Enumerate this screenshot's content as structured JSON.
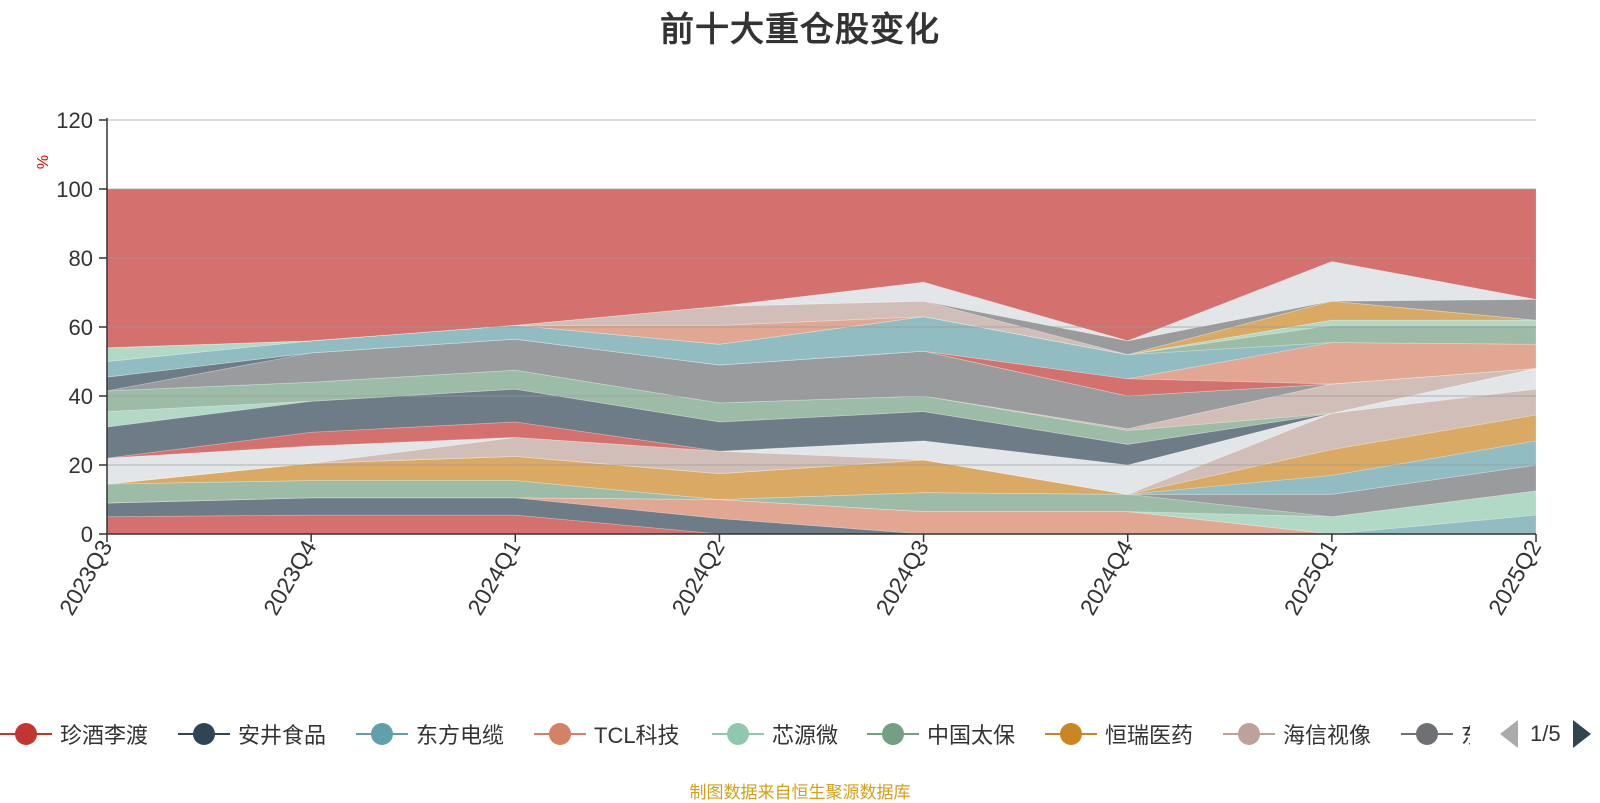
{
  "title": "前十大重仓股变化",
  "source_note": "制图数据来自恒生聚源数据库",
  "legend_page": "1/5",
  "chart_data": {
    "type": "area",
    "stacked": true,
    "title": "前十大重仓股变化",
    "ylabel": "%",
    "ylim": [
      0,
      120
    ],
    "yticks": [
      0,
      20,
      40,
      60,
      80,
      100,
      120
    ],
    "grid": true,
    "legend_position": "bottom",
    "categories": [
      "2023Q3",
      "2023Q4",
      "2024Q1",
      "2024Q2",
      "2024Q3",
      "2024Q4",
      "2025Q1",
      "2025Q2"
    ],
    "series": [
      {
        "name": "珍酒李渡",
        "color": "#c23531",
        "values": [
          5,
          5.5,
          5.5,
          0,
          0,
          0,
          0,
          0
        ]
      },
      {
        "name": "安井食品",
        "color": "#2f4554",
        "values": [
          4,
          5,
          5,
          4.5,
          0,
          0,
          0,
          0
        ]
      },
      {
        "name": "东方电缆",
        "color": "#61a0a8",
        "values": [
          0,
          0,
          0,
          0,
          0,
          0,
          0,
          5.5
        ]
      },
      {
        "name": "TCL科技",
        "color": "#d48265",
        "values": [
          0,
          0,
          0,
          5.5,
          6.5,
          6.5,
          0,
          0
        ]
      },
      {
        "name": "芯源微",
        "color": "#91c7ae",
        "values": [
          0,
          0,
          0,
          0,
          0,
          0,
          5,
          7
        ]
      },
      {
        "name": "中国太保",
        "color": "#749f83",
        "values": [
          5.5,
          5,
          5,
          0,
          5.5,
          5,
          0,
          0
        ]
      },
      {
        "name": "恒瑞医药",
        "color": "#ca8622",
        "values": [
          0,
          5,
          7,
          7.5,
          9.5,
          0,
          0,
          0
        ]
      },
      {
        "name": "海信视像",
        "color": "#bda29a",
        "values": [
          0,
          0,
          0,
          0,
          0,
          0,
          0,
          0
        ]
      },
      {
        "name": "东方雨虹",
        "color": "#6e7074",
        "values": [
          0,
          0,
          0,
          0,
          0,
          0,
          6.5,
          7.5
        ]
      }
    ]
  },
  "bands": [
    {
      "color": "#c23531",
      "lower": [
        0,
        0,
        0,
        0,
        0,
        0,
        0,
        0
      ],
      "upper": [
        5,
        5.5,
        5.5,
        0,
        0,
        0,
        0,
        0
      ]
    },
    {
      "color": "#2f4554",
      "lower": [
        5,
        5.5,
        5.5,
        0,
        0,
        0,
        0,
        0
      ],
      "upper": [
        9,
        10.5,
        10.5,
        4.5,
        0,
        0,
        0,
        0
      ]
    },
    {
      "color": "#d48265",
      "lower": [
        9,
        10.5,
        10.5,
        4.5,
        0,
        0,
        0,
        0
      ],
      "upper": [
        9,
        10.5,
        10.5,
        10,
        6.5,
        6.5,
        0,
        0
      ]
    },
    {
      "color": "#61a0a8",
      "lower": [
        9,
        10.5,
        10.5,
        10,
        6.5,
        6.5,
        0,
        0
      ],
      "upper": [
        9,
        10.5,
        10.5,
        10,
        6.5,
        6.5,
        0,
        5.5
      ]
    },
    {
      "color": "#91c7ae",
      "lower": [
        9,
        10.5,
        10.5,
        10,
        6.5,
        6.5,
        0,
        5.5
      ],
      "upper": [
        9,
        10.5,
        10.5,
        10,
        6.5,
        6.5,
        5,
        12.5
      ]
    },
    {
      "color": "#749f83",
      "lower": [
        9,
        10.5,
        10.5,
        10,
        6.5,
        6.5,
        5,
        12.5
      ],
      "upper": [
        14.5,
        15.5,
        15.5,
        10,
        12,
        11.5,
        5,
        12.5
      ]
    },
    {
      "color": "#6e7074",
      "lower": [
        14.5,
        15.5,
        15.5,
        10,
        12,
        11.5,
        5,
        12.5
      ],
      "upper": [
        14.5,
        15.5,
        15.5,
        10,
        12,
        11.5,
        11.5,
        20
      ]
    },
    {
      "color": "#ca8622",
      "lower": [
        14.5,
        15.5,
        15.5,
        10,
        12,
        11.5,
        11.5,
        20
      ],
      "upper": [
        14.5,
        20.5,
        22.5,
        17.5,
        21.5,
        11.5,
        11.5,
        20
      ]
    },
    {
      "color": "#61a0a8",
      "lower": [
        14.5,
        20.5,
        22.5,
        17.5,
        21.5,
        11.5,
        11.5,
        20
      ],
      "upper": [
        14.5,
        20.5,
        22.5,
        17.5,
        21.5,
        11.5,
        17,
        27
      ]
    },
    {
      "color": "#ca8622",
      "lower": [
        14.5,
        20.5,
        22.5,
        17.5,
        21.5,
        11.5,
        17,
        27
      ],
      "upper": [
        14.5,
        20.5,
        22.5,
        17.5,
        21.5,
        11.5,
        24.5,
        34.5
      ]
    },
    {
      "color": "#bda29a",
      "lower": [
        14.5,
        20.5,
        22.5,
        17.5,
        21.5,
        11.5,
        24.5,
        34.5
      ],
      "upper": [
        14.5,
        20.5,
        28,
        24,
        21.5,
        11.5,
        35,
        42
      ]
    },
    {
      "color": "#d7dbe0",
      "lower": [
        14.5,
        20.5,
        28,
        24,
        21.5,
        11.5,
        35,
        42
      ],
      "upper": [
        22,
        25.5,
        28,
        24,
        27,
        20,
        35,
        48
      ]
    },
    {
      "color": "#c23531",
      "lower": [
        22,
        25.5,
        28,
        24,
        27,
        20,
        35,
        48
      ],
      "upper": [
        22,
        29.5,
        32.5,
        24,
        27,
        20,
        35,
        48
      ]
    },
    {
      "color": "#2f4554",
      "lower": [
        22,
        29.5,
        32.5,
        24,
        27,
        20,
        35,
        48
      ],
      "upper": [
        31,
        38.5,
        42,
        32.5,
        35.5,
        26,
        35,
        48
      ]
    },
    {
      "color": "#91c7ae",
      "lower": [
        31,
        38.5,
        42,
        32.5,
        35.5,
        26,
        35,
        48
      ],
      "upper": [
        35.5,
        38.5,
        42,
        32.5,
        35.5,
        26,
        35,
        48
      ]
    },
    {
      "color": "#749f83",
      "lower": [
        35.5,
        38.5,
        42,
        32.5,
        35.5,
        26,
        35,
        48
      ],
      "upper": [
        41.5,
        44,
        47.5,
        38,
        40,
        30,
        35,
        48
      ]
    },
    {
      "color": "#bda29a",
      "lower": [
        41.5,
        44,
        47.5,
        38,
        40,
        30,
        35,
        48
      ],
      "upper": [
        41.5,
        44,
        47.5,
        38,
        40,
        30.5,
        43.5,
        48
      ]
    },
    {
      "color": "#6e7074",
      "lower": [
        41.5,
        44,
        47.5,
        38,
        40,
        30.5,
        43.5,
        48
      ],
      "upper": [
        41.5,
        52.5,
        56.5,
        49,
        53,
        40,
        43.5,
        48
      ]
    },
    {
      "color": "#2f4554",
      "lower": [
        41.5,
        52.5,
        56.5,
        49,
        53,
        40,
        43.5,
        48
      ],
      "upper": [
        45.5,
        52.5,
        56.5,
        49,
        53,
        40,
        43.5,
        48
      ]
    },
    {
      "color": "#c23531",
      "lower": [
        45.5,
        52.5,
        56.5,
        49,
        53,
        40,
        43.5,
        48
      ],
      "upper": [
        45.5,
        52.5,
        56.5,
        49,
        53,
        45,
        43.5,
        48
      ]
    },
    {
      "color": "#d48265",
      "lower": [
        45.5,
        52.5,
        56.5,
        49,
        53,
        45,
        43.5,
        48
      ],
      "upper": [
        45.5,
        52.5,
        56.5,
        49,
        53,
        45,
        55.5,
        55
      ]
    },
    {
      "color": "#61a0a8",
      "lower": [
        45.5,
        52.5,
        56.5,
        49,
        53,
        45,
        55.5,
        55
      ],
      "upper": [
        50,
        56,
        60.5,
        55,
        63,
        52,
        55.5,
        55
      ]
    },
    {
      "color": "#749f83",
      "lower": [
        50,
        56,
        60.5,
        55,
        63,
        52,
        55.5,
        55
      ],
      "upper": [
        50,
        56,
        60.5,
        55,
        63,
        52,
        60.5,
        60.5
      ]
    },
    {
      "color": "#91c7ae",
      "lower": [
        50,
        56,
        60.5,
        55,
        63,
        52,
        60.5,
        60.5
      ],
      "upper": [
        54,
        56,
        60.5,
        55,
        63,
        52,
        62,
        62
      ]
    },
    {
      "color": "#d48265",
      "lower": [
        54,
        56,
        60.5,
        55,
        63,
        52,
        62,
        62
      ],
      "upper": [
        54,
        56,
        60.5,
        60.5,
        63,
        52,
        62,
        62
      ]
    },
    {
      "color": "#ca8622",
      "lower": [
        54,
        56,
        60.5,
        60.5,
        63,
        52,
        62,
        62
      ],
      "upper": [
        54,
        56,
        60.5,
        60.5,
        63,
        52,
        67.5,
        62
      ]
    },
    {
      "color": "#bda29a",
      "lower": [
        54,
        56,
        60.5,
        60.5,
        63,
        52,
        67.5,
        62
      ],
      "upper": [
        54,
        56,
        60.5,
        66,
        67.5,
        52,
        67.5,
        62
      ]
    },
    {
      "color": "#6e7074",
      "lower": [
        54,
        56,
        60.5,
        66,
        67.5,
        52,
        67.5,
        62
      ],
      "upper": [
        54,
        56,
        60.5,
        66,
        67.5,
        56,
        67.5,
        68
      ]
    },
    {
      "color": "#d7dbe0",
      "lower": [
        54,
        56,
        60.5,
        66,
        67.5,
        56,
        67.5,
        68
      ],
      "upper": [
        54,
        56,
        60.5,
        66,
        73,
        56,
        79,
        68
      ]
    },
    {
      "color": "#c23531",
      "lower": [
        54,
        56,
        60.5,
        66,
        73,
        56,
        79,
        68
      ],
      "upper": [
        100,
        100,
        100,
        100,
        100,
        100,
        100,
        100
      ]
    }
  ],
  "legend_items": [
    {
      "label": "珍酒李渡",
      "color": "#c23531"
    },
    {
      "label": "安井食品",
      "color": "#2f4554"
    },
    {
      "label": "东方电缆",
      "color": "#61a0a8"
    },
    {
      "label": "TCL科技",
      "color": "#d48265"
    },
    {
      "label": "芯源微",
      "color": "#91c7ae"
    },
    {
      "label": "中国太保",
      "color": "#749f83"
    },
    {
      "label": "恒瑞医药",
      "color": "#ca8622"
    },
    {
      "label": "海信视像",
      "color": "#bda29a"
    },
    {
      "label": "东方雨虹",
      "color": "#6e7074"
    }
  ]
}
